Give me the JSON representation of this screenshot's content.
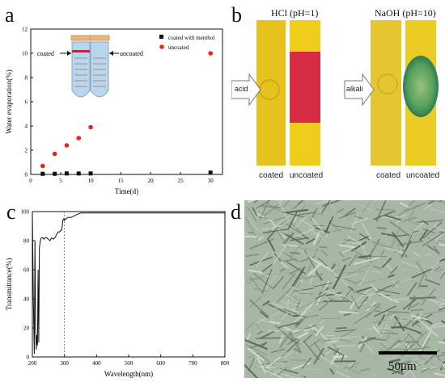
{
  "panels": {
    "a": "a",
    "b": "b",
    "c": "c",
    "d": "d"
  },
  "chart_a": {
    "type": "scatter",
    "xlabel": "Time(d)",
    "ylabel": "Water evaporation(%)",
    "xlim": [
      0,
      32
    ],
    "ylim": [
      0,
      12
    ],
    "xticks": [
      0,
      5,
      10,
      15,
      20,
      25,
      30
    ],
    "yticks": [
      0,
      2,
      4,
      6,
      8,
      10,
      12
    ],
    "legend": [
      "coated with menthol",
      "uncoated"
    ],
    "series": [
      {
        "name": "coated with menthol",
        "color": "#111111",
        "marker": "square",
        "x": [
          2,
          4,
          6,
          8,
          10,
          30
        ],
        "y": [
          0.05,
          0.05,
          0.08,
          0.08,
          0.08,
          0.15
        ]
      },
      {
        "name": "uncoated",
        "color": "#e8241c",
        "marker": "circle",
        "x": [
          2,
          4,
          6,
          8,
          10,
          30
        ],
        "y": [
          0.7,
          1.7,
          2.4,
          3.0,
          3.9,
          10.0
        ]
      }
    ],
    "tube_labels": {
      "left": "coated",
      "right": "uncoated"
    }
  },
  "panel_b": {
    "acid_title": "HCl (pH=1)",
    "base_title": "NaOH (pH=10)",
    "acid_arrow": "acid",
    "base_arrow": "alkali",
    "captions": [
      "coated",
      "uncoated",
      "coated",
      "uncoated"
    ],
    "colors": {
      "yellow": "#e9c21a",
      "red": "#d4243c",
      "green": "#4a8f55"
    }
  },
  "chart_c": {
    "type": "line",
    "xlabel": "Wavelength(nm)",
    "ylabel": "Transmittance(%)",
    "xlim": [
      200,
      800
    ],
    "ylim": [
      0,
      100
    ],
    "xticks": [
      200,
      300,
      400,
      500,
      600,
      700,
      800
    ],
    "yticks": [
      0,
      20,
      40,
      60,
      80,
      100
    ],
    "vline": 300,
    "x": [
      200,
      203,
      206,
      208,
      210,
      212,
      214,
      216,
      218,
      220,
      222,
      225,
      228,
      232,
      236,
      240,
      245,
      250,
      255,
      260,
      265,
      270,
      275,
      280,
      285,
      288,
      290,
      292,
      295,
      298,
      300,
      303,
      306,
      310,
      315,
      320,
      330,
      340,
      350,
      360,
      380,
      400,
      450,
      500,
      600,
      700,
      800
    ],
    "y": [
      100,
      40,
      2,
      80,
      20,
      5,
      15,
      8,
      60,
      10,
      75,
      80,
      82,
      82,
      81,
      82,
      82,
      81,
      80,
      82,
      81,
      82,
      84,
      86,
      86,
      87,
      87,
      88,
      94,
      95,
      94,
      95,
      95,
      96,
      96,
      96,
      97,
      98,
      99,
      99,
      99,
      99,
      99,
      99,
      99,
      99,
      99
    ]
  },
  "panel_d": {
    "scale_label": "50μm"
  }
}
